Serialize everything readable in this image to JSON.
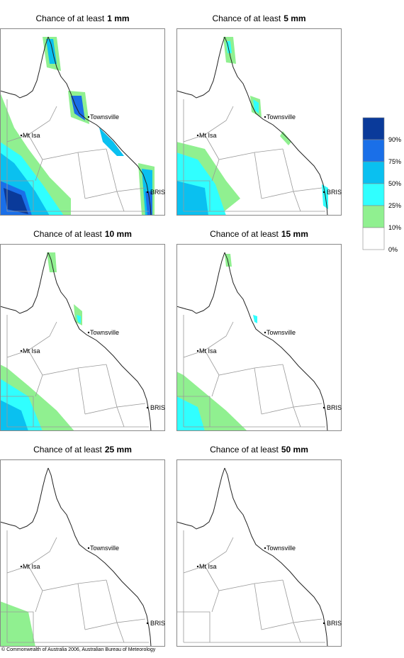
{
  "panels": [
    {
      "title": {
        "prefix": "Chance of at least",
        "amount": "1 mm"
      },
      "places": [
        "Townsville",
        "Mt Isa",
        "BRIS"
      ]
    },
    {
      "title": {
        "prefix": "Chance of at least",
        "amount": "5 mm"
      },
      "places": [
        "Townsville",
        "Mt Isa",
        "BRIS"
      ]
    },
    {
      "title": {
        "prefix": "Chance of at least",
        "amount": "10 mm"
      },
      "places": [
        "Townsville",
        "Mt Isa",
        "BRIS"
      ]
    },
    {
      "title": {
        "prefix": "Chance of at least",
        "amount": "15 mm"
      },
      "places": [
        "Townsville",
        "Mt Isa",
        "BRIS"
      ]
    },
    {
      "title": {
        "prefix": "Chance of at least",
        "amount": "25 mm"
      },
      "places": [
        "Townsville",
        "Mt Isa",
        "BRIS"
      ]
    },
    {
      "title": {
        "prefix": "Chance of at least",
        "amount": "50 mm"
      },
      "places": [
        "Townsville",
        "Mt Isa",
        "BRIS"
      ]
    }
  ],
  "legend": [
    {
      "label": "90%",
      "color": "#0a3a9a"
    },
    {
      "label": "75%",
      "color": "#1a6fe8"
    },
    {
      "label": "50%",
      "color": "#0ac0f0"
    },
    {
      "label": "25%",
      "color": "#30ffff"
    },
    {
      "label": "10%",
      "color": "#90f090"
    },
    {
      "label": "0%",
      "color": "#ffffff"
    }
  ],
  "footer": "© Commonwealth of Australia 2006, Australian Bureau of Meteorology"
}
